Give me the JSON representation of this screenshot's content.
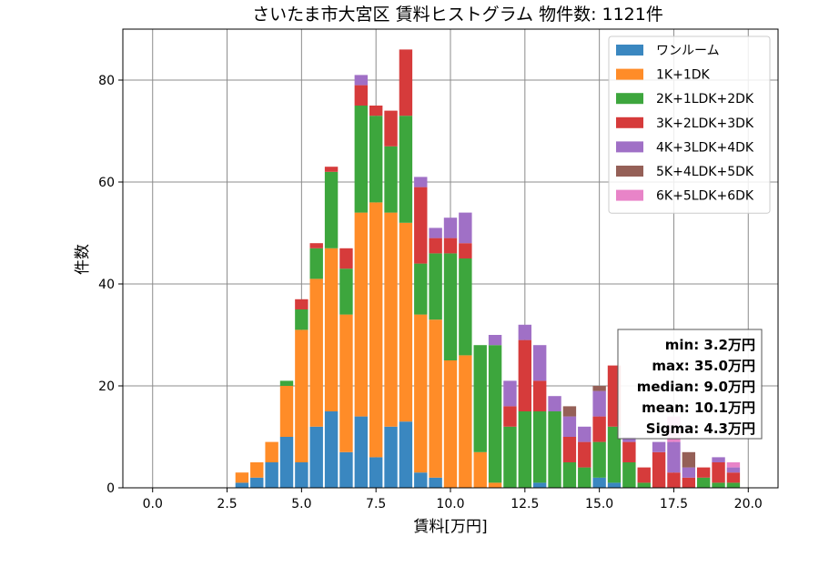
{
  "chart_data": {
    "type": "bar",
    "stacked": true,
    "title": "さいたま市大宮区 賃料ヒストグラム 物件数: 1121件",
    "xlabel": "賃料[万円]",
    "ylabel": "件数",
    "xlim": [
      -1.0,
      21.0
    ],
    "ylim": [
      0,
      90
    ],
    "xticks": [
      0.0,
      2.5,
      5.0,
      7.5,
      10.0,
      12.5,
      15.0,
      17.5,
      20.0
    ],
    "xtick_labels": [
      "0.0",
      "2.5",
      "5.0",
      "7.5",
      "10.0",
      "12.5",
      "15.0",
      "17.5",
      "20.0"
    ],
    "yticks": [
      0,
      20,
      40,
      60,
      80
    ],
    "ytick_labels": [
      "0",
      "20",
      "40",
      "60",
      "80"
    ],
    "grid": true,
    "legend_position": "upper right",
    "bin_width": 0.5,
    "bins": [
      3.0,
      3.5,
      4.0,
      4.5,
      5.0,
      5.5,
      6.0,
      6.5,
      7.0,
      7.5,
      8.0,
      8.5,
      9.0,
      9.5,
      10.0,
      10.5,
      11.0,
      11.5,
      12.0,
      12.5,
      13.0,
      13.5,
      14.0,
      14.5,
      15.0,
      15.5,
      16.0,
      16.5,
      17.0,
      17.5,
      18.0,
      18.5,
      19.0,
      19.5
    ],
    "series": [
      {
        "name": "ワンルーム",
        "color": "#3a87c0",
        "values": [
          1,
          2,
          5,
          10,
          5,
          12,
          15,
          7,
          14,
          6,
          12,
          13,
          3,
          2,
          0,
          0,
          0,
          0,
          0,
          0,
          1,
          0,
          0,
          0,
          2,
          1,
          0,
          0,
          0,
          0,
          0,
          0,
          0,
          0
        ]
      },
      {
        "name": "1K+1DK",
        "color": "#ff8c28",
        "values": [
          2,
          3,
          4,
          10,
          26,
          29,
          32,
          27,
          40,
          50,
          42,
          39,
          31,
          31,
          25,
          26,
          7,
          1,
          0,
          0,
          0,
          0,
          0,
          0,
          0,
          0,
          0,
          0,
          0,
          0,
          0,
          0,
          0,
          0
        ]
      },
      {
        "name": "2K+1LDK+2DK",
        "color": "#3da63d",
        "values": [
          0,
          0,
          0,
          1,
          4,
          6,
          15,
          9,
          21,
          17,
          13,
          21,
          10,
          13,
          21,
          19,
          21,
          27,
          12,
          15,
          14,
          15,
          5,
          4,
          7,
          11,
          5,
          1,
          0,
          0,
          0,
          2,
          1,
          1
        ]
      },
      {
        "name": "3K+2LDK+3DK",
        "color": "#d63b3b",
        "values": [
          0,
          0,
          0,
          0,
          2,
          1,
          1,
          4,
          4,
          2,
          7,
          13,
          15,
          3,
          3,
          3,
          0,
          0,
          4,
          14,
          6,
          0,
          5,
          5,
          5,
          12,
          4,
          3,
          7,
          3,
          2,
          2,
          4,
          2
        ]
      },
      {
        "name": "4K+3LDK+4DK",
        "color": "#a070c6",
        "values": [
          0,
          0,
          0,
          0,
          0,
          0,
          0,
          0,
          2,
          0,
          0,
          0,
          2,
          2,
          4,
          6,
          0,
          2,
          5,
          3,
          7,
          3,
          4,
          3,
          5,
          0,
          1,
          0,
          2,
          6,
          2,
          0,
          1,
          1
        ]
      },
      {
        "name": "5K+4LDK+5DK",
        "color": "#956057",
        "values": [
          0,
          0,
          0,
          0,
          0,
          0,
          0,
          0,
          0,
          0,
          0,
          0,
          0,
          0,
          0,
          0,
          0,
          0,
          0,
          0,
          0,
          0,
          2,
          0,
          1,
          0,
          0,
          0,
          0,
          0,
          3,
          0,
          0,
          0
        ]
      },
      {
        "name": "6K+5LDK+6DK",
        "color": "#e884c8",
        "values": [
          0,
          0,
          0,
          0,
          0,
          0,
          0,
          0,
          0,
          0,
          0,
          0,
          0,
          0,
          0,
          0,
          0,
          0,
          0,
          0,
          0,
          0,
          0,
          0,
          0,
          0,
          0,
          0,
          0,
          5,
          0,
          0,
          0,
          1
        ]
      }
    ],
    "stats_box": {
      "lines": [
        "min: 3.2万円",
        "max: 35.0万円",
        "median: 9.0万円",
        "mean: 10.1万円",
        "Sigma: 4.3万円"
      ]
    }
  }
}
